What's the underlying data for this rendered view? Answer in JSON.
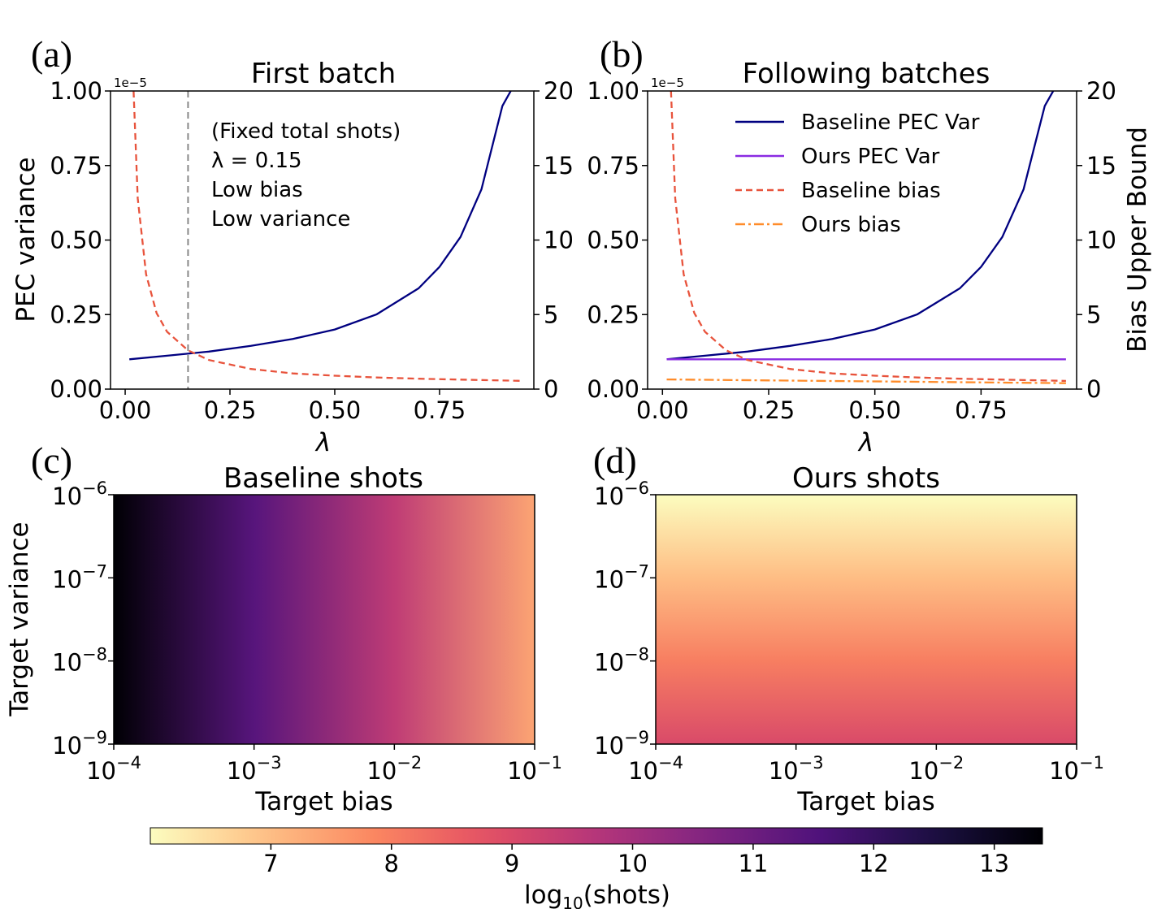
{
  "panels": {
    "a": {
      "letter": "(a)",
      "title": "First batch",
      "ylabel": "PEC variance",
      "y_offset": "1e−5",
      "xlabel": "λ",
      "annotation": [
        "(Fixed total shots)",
        "λ = 0.15",
        "Low bias",
        "Low variance"
      ]
    },
    "b": {
      "letter": "(b)",
      "title": "Following batches",
      "ylabel_right": "Bias Upper Bound",
      "y_offset": "1e−5",
      "xlabel": "λ",
      "legend": [
        "Baseline PEC Var",
        "Ours PEC Var",
        "Baseline bias",
        "Ours bias"
      ]
    },
    "c": {
      "letter": "(c)",
      "title": "Baseline shots",
      "ylabel": "Target variance",
      "xlabel": "Target bias"
    },
    "d": {
      "letter": "(d)",
      "title": "Ours shots",
      "xlabel": "Target bias"
    }
  },
  "colorbar": {
    "label": "log10(shots)",
    "ticks": [
      "7",
      "8",
      "9",
      "10",
      "11",
      "12",
      "13"
    ],
    "range": [
      6.0,
      13.4
    ],
    "colormap": "magma"
  },
  "colors": {
    "baseline_var": "#000080",
    "ours_var": "#8a2be2",
    "baseline_bias": "#e8533c",
    "ours_bias": "#ff8c2a",
    "left_axis": "#000080",
    "right_axis": "#e04a2e",
    "vline": "#888888"
  },
  "chart_data": [
    {
      "type": "line",
      "panel": "a",
      "x_ticks": [
        "0.00",
        "0.25",
        "0.50",
        "0.75"
      ],
      "y_left_ticks": [
        "0.00",
        "0.25",
        "0.50",
        "0.75",
        "1.00"
      ],
      "y_right_ticks": [
        "0",
        "5",
        "10",
        "15",
        "20"
      ],
      "xlim": [
        -0.035,
        0.975
      ],
      "ylim_left": [
        0,
        1.0
      ],
      "ylim_right": [
        0,
        20
      ],
      "vline_x": 0.15,
      "series": [
        {
          "axis": "left",
          "style": "solid",
          "x": [
            0.01,
            0.1,
            0.2,
            0.3,
            0.4,
            0.5,
            0.6,
            0.7,
            0.75,
            0.8,
            0.85,
            0.9,
            0.92
          ],
          "y": [
            0.1,
            0.112,
            0.126,
            0.145,
            0.168,
            0.2,
            0.251,
            0.338,
            0.41,
            0.51,
            0.67,
            0.95,
            1.0
          ]
        },
        {
          "axis": "right",
          "style": "dashed",
          "x": [
            0.02,
            0.03,
            0.05,
            0.075,
            0.1,
            0.15,
            0.2,
            0.3,
            0.4,
            0.5,
            0.6,
            0.7,
            0.8,
            0.95
          ],
          "y": [
            20,
            12.8,
            7.7,
            5.1,
            3.85,
            2.6,
            1.95,
            1.35,
            1.05,
            0.9,
            0.78,
            0.7,
            0.64,
            0.55
          ]
        }
      ]
    },
    {
      "type": "line",
      "panel": "b",
      "x_ticks": [
        "0.00",
        "0.25",
        "0.50",
        "0.75"
      ],
      "y_left_ticks": [
        "0.00",
        "0.25",
        "0.50",
        "0.75",
        "1.00"
      ],
      "y_right_ticks": [
        "0",
        "5",
        "10",
        "15",
        "20"
      ],
      "xlim": [
        -0.035,
        0.975
      ],
      "ylim_left": [
        0,
        1.0
      ],
      "ylim_right": [
        0,
        20
      ],
      "series": [
        {
          "name": "Baseline PEC Var",
          "axis": "left",
          "style": "solid",
          "x": [
            0.01,
            0.1,
            0.2,
            0.3,
            0.4,
            0.5,
            0.6,
            0.7,
            0.75,
            0.8,
            0.85,
            0.9,
            0.92
          ],
          "y": [
            0.1,
            0.112,
            0.126,
            0.145,
            0.168,
            0.2,
            0.251,
            0.338,
            0.41,
            0.51,
            0.67,
            0.95,
            1.0
          ]
        },
        {
          "name": "Ours PEC Var",
          "axis": "left",
          "style": "solid",
          "x": [
            0.01,
            0.95
          ],
          "y": [
            0.1,
            0.1
          ]
        },
        {
          "name": "Baseline bias",
          "axis": "right",
          "style": "dashed",
          "x": [
            0.02,
            0.03,
            0.05,
            0.075,
            0.1,
            0.15,
            0.2,
            0.3,
            0.4,
            0.5,
            0.6,
            0.7,
            0.8,
            0.95
          ],
          "y": [
            20,
            12.8,
            7.7,
            5.1,
            3.85,
            2.6,
            1.95,
            1.35,
            1.05,
            0.9,
            0.78,
            0.7,
            0.64,
            0.55
          ]
        },
        {
          "name": "Ours bias",
          "axis": "right",
          "style": "dashdot",
          "x": [
            0.01,
            0.95
          ],
          "y": [
            0.65,
            0.4
          ]
        }
      ]
    },
    {
      "type": "heatmap",
      "panel": "c",
      "x": "Target bias",
      "y": "Target variance",
      "x_ticks": [
        "10^-4",
        "10^-3",
        "10^-2",
        "10^-1"
      ],
      "y_ticks": [
        "10^-9",
        "10^-8",
        "10^-7",
        "10^-6"
      ],
      "x_log_range": [
        -4,
        -1
      ],
      "y_log_range": [
        -9,
        -6
      ],
      "note": "log10(shots) decreases from ~13.4 at bias 1e-4 to ~7.3 at bias 1e-1; weak dependence on variance",
      "samples": [
        {
          "bias_exp": -4,
          "value": 13.4
        },
        {
          "bias_exp": -3,
          "value": 11.4
        },
        {
          "bias_exp": -2,
          "value": 9.5
        },
        {
          "bias_exp": -1,
          "value": 7.4
        }
      ]
    },
    {
      "type": "heatmap",
      "panel": "d",
      "x": "Target bias",
      "x_ticks": [
        "10^-4",
        "10^-3",
        "10^-2",
        "10^-1"
      ],
      "y_ticks": [
        "10^-9",
        "10^-8",
        "10^-7",
        "10^-6"
      ],
      "x_log_range": [
        -4,
        -1
      ],
      "y_log_range": [
        -9,
        -6
      ],
      "note": "log10(shots) depends only on target variance: ~6.0 at 1e-6 to ~9.0 at 1e-9",
      "samples": [
        {
          "var_exp": -6,
          "value": 6.0
        },
        {
          "var_exp": -7,
          "value": 7.0
        },
        {
          "var_exp": -8,
          "value": 8.0
        },
        {
          "var_exp": -9,
          "value": 9.0
        }
      ]
    }
  ]
}
